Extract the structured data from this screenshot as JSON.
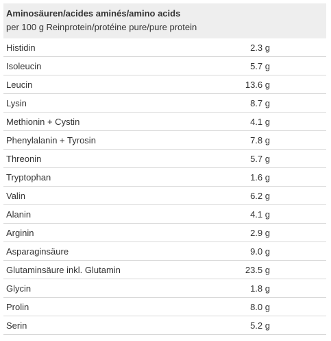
{
  "header": {
    "title": "Aminosäuren/acides aminés/amino acids",
    "subtitle": "per 100 g Reinprotein/protéine pure/pure protein"
  },
  "table": {
    "rows": [
      [
        "Histidin",
        "2.3 g"
      ],
      [
        "Isoleucin",
        "5.7 g"
      ],
      [
        "Leucin",
        "13.6 g"
      ],
      [
        "Lysin",
        "8.7 g"
      ],
      [
        "Methionin + Cystin",
        "4.1 g"
      ],
      [
        "Phenylalanin + Tyrosin",
        "7.8 g"
      ],
      [
        "Threonin",
        "5.7 g"
      ],
      [
        "Tryptophan",
        "1.6 g"
      ],
      [
        "Valin",
        "6.2 g"
      ],
      [
        "Alanin",
        "4.1 g"
      ],
      [
        "Arginin",
        "2.9 g"
      ],
      [
        "Asparaginsäure",
        "9.0 g"
      ],
      [
        "Glutaminsäure inkl. Glutamin",
        "23.5 g"
      ],
      [
        "Glycin",
        "1.8 g"
      ],
      [
        "Prolin",
        "8.0 g"
      ],
      [
        "Serin",
        "5.2 g"
      ]
    ]
  }
}
